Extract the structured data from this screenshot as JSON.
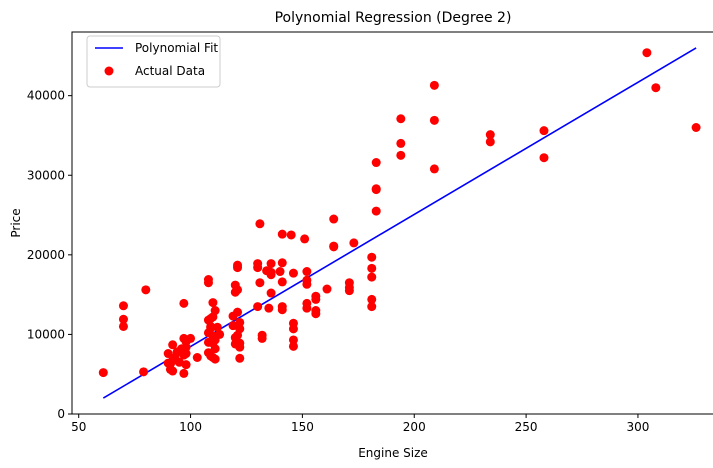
{
  "chart_data": {
    "type": "scatter",
    "title": "Polynomial Regression (Degree 2)",
    "xlabel": "Engine Size",
    "ylabel": "Price",
    "xlim": [
      47,
      334
    ],
    "ylim": [
      0,
      48000
    ],
    "xticks": [
      50,
      100,
      150,
      200,
      250,
      300
    ],
    "yticks": [
      0,
      10000,
      20000,
      30000,
      40000
    ],
    "grid": false,
    "legend_position": "top-left",
    "series": [
      {
        "name": "Polynomial Fit",
        "kind": "line",
        "color": "#0000ff",
        "x": [
          61,
          326
        ],
        "y": [
          2000,
          46000
        ]
      },
      {
        "name": "Actual Data",
        "kind": "scatter",
        "color": "#ff0000",
        "points": [
          [
            61,
            5200
          ],
          [
            70,
            13600
          ],
          [
            70,
            11900
          ],
          [
            70,
            11000
          ],
          [
            79,
            5300
          ],
          [
            80,
            15600
          ],
          [
            90,
            7600
          ],
          [
            90,
            6400
          ],
          [
            91,
            5600
          ],
          [
            91,
            6300
          ],
          [
            92,
            8700
          ],
          [
            92,
            5400
          ],
          [
            92,
            6700
          ],
          [
            93,
            7100
          ],
          [
            94,
            7800
          ],
          [
            95,
            6500
          ],
          [
            96,
            8200
          ],
          [
            97,
            9500
          ],
          [
            97,
            7400
          ],
          [
            97,
            13900
          ],
          [
            97,
            5100
          ],
          [
            98,
            9100
          ],
          [
            98,
            7600
          ],
          [
            98,
            6200
          ],
          [
            98,
            9300
          ],
          [
            98,
            8400
          ],
          [
            100,
            9500
          ],
          [
            103,
            7100
          ],
          [
            108,
            7700
          ],
          [
            108,
            9000
          ],
          [
            108,
            16500
          ],
          [
            108,
            16900
          ],
          [
            108,
            11800
          ],
          [
            108,
            10200
          ],
          [
            109,
            7300
          ],
          [
            109,
            12000
          ],
          [
            109,
            11000
          ],
          [
            109,
            10800
          ],
          [
            110,
            12200
          ],
          [
            110,
            14000
          ],
          [
            110,
            9800
          ],
          [
            110,
            8900
          ],
          [
            110,
            7100
          ],
          [
            111,
            13000
          ],
          [
            111,
            9300
          ],
          [
            111,
            8200
          ],
          [
            111,
            6900
          ],
          [
            112,
            10900
          ],
          [
            113,
            10000
          ],
          [
            119,
            11100
          ],
          [
            119,
            12300
          ],
          [
            120,
            16200
          ],
          [
            120,
            15300
          ],
          [
            120,
            9600
          ],
          [
            120,
            8800
          ],
          [
            121,
            18400
          ],
          [
            121,
            18700
          ],
          [
            121,
            15600
          ],
          [
            121,
            12800
          ],
          [
            121,
            9900
          ],
          [
            122,
            11500
          ],
          [
            122,
            10700
          ],
          [
            122,
            8900
          ],
          [
            122,
            8400
          ],
          [
            122,
            7000
          ],
          [
            130,
            13500
          ],
          [
            130,
            18400
          ],
          [
            130,
            18900
          ],
          [
            131,
            16500
          ],
          [
            131,
            23900
          ],
          [
            132,
            9900
          ],
          [
            132,
            9500
          ],
          [
            134,
            18000
          ],
          [
            135,
            13300
          ],
          [
            136,
            17800
          ],
          [
            136,
            17500
          ],
          [
            136,
            15200
          ],
          [
            136,
            18900
          ],
          [
            140,
            17900
          ],
          [
            141,
            22600
          ],
          [
            141,
            19000
          ],
          [
            141,
            16600
          ],
          [
            141,
            13500
          ],
          [
            141,
            13100
          ],
          [
            145,
            22500
          ],
          [
            146,
            17700
          ],
          [
            146,
            11400
          ],
          [
            146,
            10700
          ],
          [
            146,
            9300
          ],
          [
            146,
            8500
          ],
          [
            151,
            22000
          ],
          [
            152,
            17900
          ],
          [
            152,
            16800
          ],
          [
            152,
            16300
          ],
          [
            152,
            13900
          ],
          [
            152,
            13300
          ],
          [
            156,
            14800
          ],
          [
            156,
            14400
          ],
          [
            156,
            13000
          ],
          [
            156,
            12600
          ],
          [
            161,
            15700
          ],
          [
            164,
            24500
          ],
          [
            164,
            21100
          ],
          [
            164,
            21000
          ],
          [
            171,
            15500
          ],
          [
            171,
            15900
          ],
          [
            171,
            16500
          ],
          [
            173,
            21500
          ],
          [
            181,
            19700
          ],
          [
            181,
            18300
          ],
          [
            181,
            17200
          ],
          [
            181,
            14400
          ],
          [
            181,
            13500
          ],
          [
            183,
            31600
          ],
          [
            183,
            28200
          ],
          [
            183,
            28300
          ],
          [
            183,
            25500
          ],
          [
            194,
            37100
          ],
          [
            194,
            34000
          ],
          [
            194,
            32500
          ],
          [
            209,
            41300
          ],
          [
            209,
            36900
          ],
          [
            209,
            30800
          ],
          [
            234,
            35100
          ],
          [
            234,
            34200
          ],
          [
            258,
            35600
          ],
          [
            258,
            32200
          ],
          [
            304,
            45400
          ],
          [
            308,
            41000
          ],
          [
            326,
            36000
          ]
        ]
      }
    ]
  }
}
